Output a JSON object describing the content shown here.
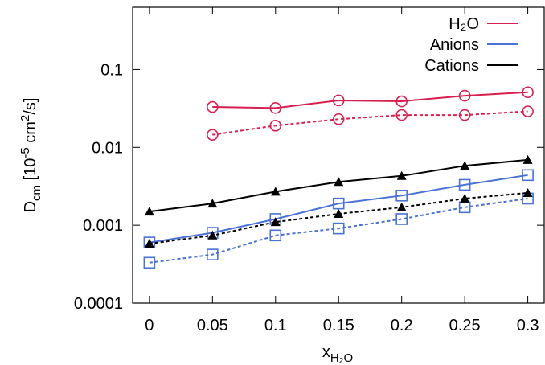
{
  "chart_data": {
    "type": "line",
    "xlabel": [
      "x",
      "H₂O"
    ],
    "ylabel": [
      "D",
      "cm",
      " [10",
      "-5",
      " cm",
      "2",
      "/s]"
    ],
    "x": [
      0,
      0.05,
      0.1,
      0.15,
      0.2,
      0.25,
      0.3
    ],
    "xlim": [
      -0.0133,
      0.313
    ],
    "xticks": [
      0,
      0.05,
      0.1,
      0.15,
      0.2,
      0.25,
      0.3
    ],
    "ylim": [
      0.0001,
      0.63
    ],
    "yticks": [
      0.0001,
      0.001,
      0.01,
      0.1
    ],
    "log_y": true,
    "legend": "upper right",
    "series": [
      {
        "name": "H₂O",
        "color": "#d62050",
        "marker": "circle",
        "dashed": false,
        "values": [
          null,
          0.033,
          0.032,
          0.04,
          0.039,
          0.046,
          0.051
        ]
      },
      {
        "color": "#d62050",
        "marker": "circle",
        "dashed": true,
        "values": [
          null,
          0.0145,
          0.019,
          0.023,
          0.026,
          0.026,
          0.029
        ]
      },
      {
        "name": "Anions",
        "color": "#4a72d4",
        "marker": "square",
        "dashed": false,
        "values": [
          0.0006,
          0.0008,
          0.0012,
          0.0019,
          0.0024,
          0.0033,
          0.0044
        ]
      },
      {
        "color": "#4a72d4",
        "marker": "square",
        "dashed": true,
        "values": [
          0.00033,
          0.00042,
          0.00074,
          0.00091,
          0.0012,
          0.0017,
          0.0022
        ]
      },
      {
        "name": "Cations",
        "color": "#000000",
        "marker": "triangle",
        "dashed": false,
        "values": [
          0.0015,
          0.0019,
          0.0027,
          0.0036,
          0.0043,
          0.0058,
          0.0069
        ]
      },
      {
        "color": "#000000",
        "marker": "triangle",
        "dashed": true,
        "values": [
          0.00058,
          0.00074,
          0.0011,
          0.0014,
          0.0017,
          0.0022,
          0.0026
        ]
      }
    ]
  }
}
